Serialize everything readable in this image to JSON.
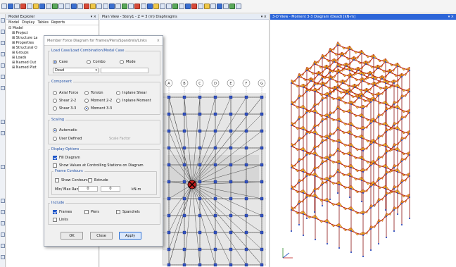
{
  "toolbar": {
    "icons": [
      "new-icon",
      "open-icon",
      "save-icon",
      "undo-icon",
      "redo-icon",
      "pointer-icon",
      "pencil-icon",
      "run-icon",
      "zoom-window-icon",
      "zoom-in-icon",
      "zoom-out-icon",
      "zoom-fit-icon",
      "pan-icon",
      "3d-view-icon",
      "plan-view-icon",
      "elevation-view-icon",
      "rotate-icon",
      "refresh-icon",
      "display-icon",
      "grid-icon",
      "options-icon",
      "assign-icon",
      "diagram-icon",
      "select-icon",
      "frame-icon",
      "shell-icon",
      "link-icon",
      "point-icon",
      "section-icon",
      "load-icon",
      "analyze-icon",
      "design-icon",
      "deformed-icon",
      "force-icon",
      "stress-icon",
      "table-icon",
      "report-icon",
      "help-icon"
    ]
  },
  "explorer": {
    "title": "Model Explorer",
    "close": "▾ ×",
    "tabs": [
      "Model",
      "Display",
      "Tables",
      "Reports"
    ],
    "tree": [
      "⊟ Model",
      "⊞ Project",
      "⊞ Structure La",
      "⊞ Properties",
      "⊞ Structural O",
      "⊞ Groups",
      "⊞ Loads",
      "⊞ Named Out",
      "⊞ Named Plot"
    ]
  },
  "plan": {
    "title": "Plan View - Story1 - Z = 3 (m)  Diaphragms",
    "close": "▾ ×",
    "grid_labels": [
      "A",
      "B",
      "C",
      "D",
      "E",
      "F",
      "G"
    ]
  },
  "view3d": {
    "title": "3-D View - Moment 3-3 Diagram   (Dead)  [kN-m]",
    "close": "▾ ×"
  },
  "dialog": {
    "title": "Member Force Diagram for Frames/Piers/Spandrels/Links",
    "close": "×",
    "load_case": {
      "legend": "Load Case/Load Combination/Modal Case",
      "options": [
        "Case",
        "Combo",
        "Mode"
      ],
      "selected": "Case",
      "value": "Dead"
    },
    "component": {
      "legend": "Component",
      "options": [
        "Axial Force",
        "Torsion",
        "Inplane Shear",
        "Shear 2-2",
        "Moment 2-2",
        "Inplane Moment",
        "Shear 3-3",
        "Moment 3-3"
      ],
      "selected": "Moment 3-3"
    },
    "scaling": {
      "legend": "Scaling",
      "options": [
        "Automatic",
        "User Defined"
      ],
      "selected": "Automatic",
      "scale_factor_label": "Scale Factor"
    },
    "display": {
      "legend": "Display Options",
      "fill_diagram": "Fill Diagram",
      "show_values": "Show Values at Controlling Stations on Diagram",
      "frame_contours_legend": "Frame Contours",
      "show_contours": "Show Contours",
      "extrude": "Extrude",
      "range_label": "Min/ Max Range",
      "range_min": "0",
      "range_max": "0",
      "unit": "kN-m"
    },
    "include": {
      "legend": "Include",
      "frames": "Frames",
      "piers": "Piers",
      "spandrels": "Spandrels",
      "links": "Links"
    },
    "buttons": {
      "ok": "OK",
      "close": "Close",
      "apply": "Apply"
    }
  },
  "colors": {
    "accent": "#2c65d8",
    "frame": "#b01010",
    "diagram_fill": "#e3b015",
    "node": "#3050c0"
  }
}
